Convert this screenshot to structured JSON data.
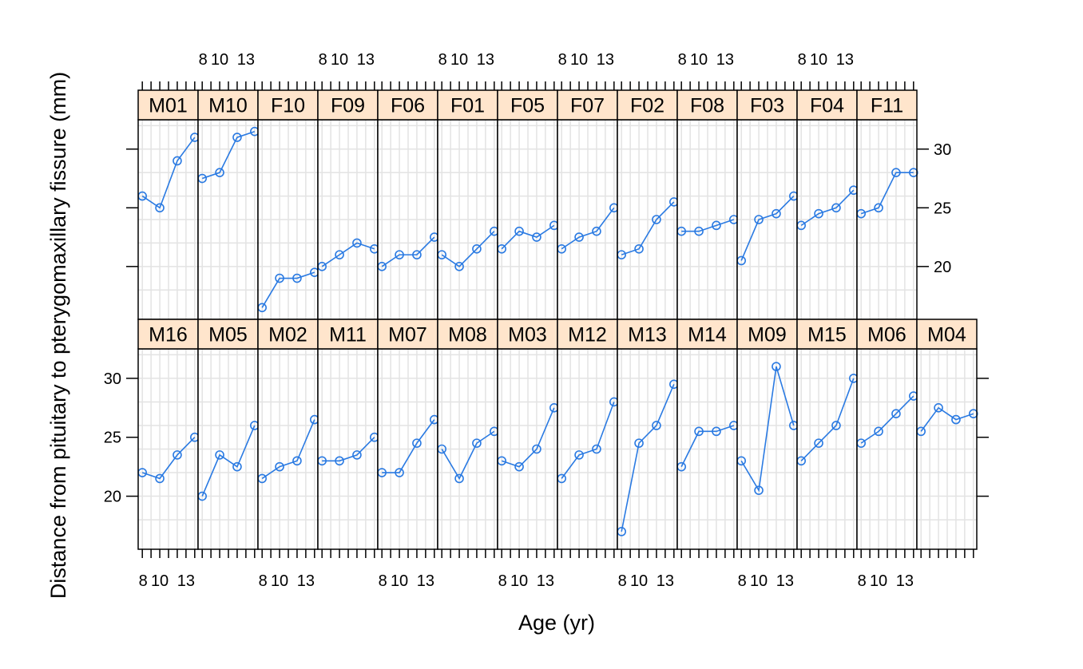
{
  "chart_data": {
    "type": "line",
    "layout": "trellis",
    "xlabel": "Age (yr)",
    "ylabel": "Distance from pituitary to pterygomaxillary fissure (mm)",
    "x": [
      8,
      10,
      12,
      14
    ],
    "x_tick_labels": [
      "8",
      "10",
      "13"
    ],
    "y_ticks": [
      20,
      25,
      30
    ],
    "ylim": [
      15.5,
      32.5
    ],
    "xlim": [
      7.8,
      14.2
    ],
    "grid": true,
    "colors": {
      "line": "#2a7ae2",
      "strip_bg": "#ffe5cc",
      "grid": "#e3e3e3",
      "frame": "#000000"
    },
    "rows": [
      {
        "position": "top",
        "panels": [
          {
            "name": "M01",
            "values": [
              26,
              25,
              29,
              31
            ]
          },
          {
            "name": "M10",
            "values": [
              27.5,
              28,
              31,
              31.5
            ]
          },
          {
            "name": "F10",
            "values": [
              16.5,
              19,
              19,
              19.5
            ]
          },
          {
            "name": "F09",
            "values": [
              20,
              21,
              22,
              21.5
            ]
          },
          {
            "name": "F06",
            "values": [
              20,
              21,
              21,
              22.5
            ]
          },
          {
            "name": "F01",
            "values": [
              21,
              20,
              21.5,
              23
            ]
          },
          {
            "name": "F05",
            "values": [
              21.5,
              23,
              22.5,
              23.5
            ]
          },
          {
            "name": "F07",
            "values": [
              21.5,
              22.5,
              23,
              25
            ]
          },
          {
            "name": "F02",
            "values": [
              21,
              21.5,
              24,
              25.5
            ]
          },
          {
            "name": "F08",
            "values": [
              23,
              23,
              23.5,
              24
            ]
          },
          {
            "name": "F03",
            "values": [
              20.5,
              24,
              24.5,
              26
            ]
          },
          {
            "name": "F04",
            "values": [
              23.5,
              24.5,
              25,
              26.5
            ]
          },
          {
            "name": "F11",
            "values": [
              24.5,
              25,
              28,
              28
            ]
          }
        ]
      },
      {
        "position": "bottom",
        "panels": [
          {
            "name": "M16",
            "values": [
              22,
              21.5,
              23.5,
              25
            ]
          },
          {
            "name": "M05",
            "values": [
              20,
              23.5,
              22.5,
              26
            ]
          },
          {
            "name": "M02",
            "values": [
              21.5,
              22.5,
              23,
              26.5
            ]
          },
          {
            "name": "M11",
            "values": [
              23,
              23,
              23.5,
              25
            ]
          },
          {
            "name": "M07",
            "values": [
              22,
              22,
              24.5,
              26.5
            ]
          },
          {
            "name": "M08",
            "values": [
              24,
              21.5,
              24.5,
              25.5
            ]
          },
          {
            "name": "M03",
            "values": [
              23,
              22.5,
              24,
              27.5
            ]
          },
          {
            "name": "M12",
            "values": [
              21.5,
              23.5,
              24,
              28
            ]
          },
          {
            "name": "M13",
            "values": [
              17,
              24.5,
              26,
              29.5
            ]
          },
          {
            "name": "M14",
            "values": [
              22.5,
              25.5,
              25.5,
              26
            ]
          },
          {
            "name": "M09",
            "values": [
              23,
              20.5,
              31,
              26
            ]
          },
          {
            "name": "M15",
            "values": [
              23,
              24.5,
              26,
              30
            ]
          },
          {
            "name": "M06",
            "values": [
              24.5,
              25.5,
              27,
              28.5
            ]
          },
          {
            "name": "M04",
            "values": [
              25.5,
              27.5,
              26.5,
              27
            ]
          }
        ]
      }
    ]
  }
}
